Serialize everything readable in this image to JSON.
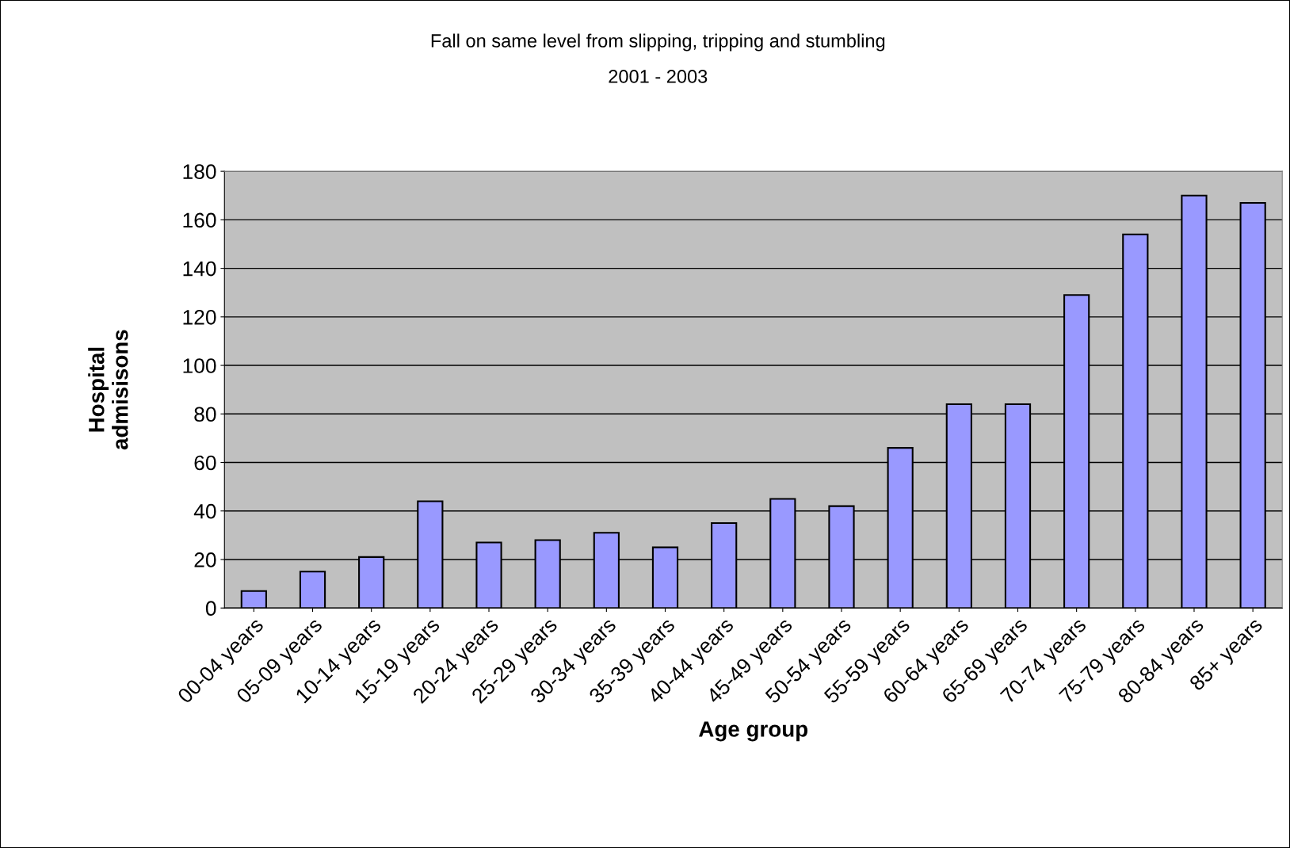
{
  "chart_data": {
    "type": "bar",
    "title": "Fall on same level from slipping, tripping and stumbling",
    "subtitle": "2001 - 2003",
    "xlabel": "Age group",
    "ylabel": "Hospital\nadmisisons",
    "categories": [
      "00-04 years",
      "05-09 years",
      "10-14 years",
      "15-19 years",
      "20-24 years",
      "25-29 years",
      "30-34 years",
      "35-39 years",
      "40-44 years",
      "45-49 years",
      "50-54 years",
      "55-59 years",
      "60-64 years",
      "65-69 years",
      "70-74 years",
      "75-79 years",
      "80-84 years",
      "85+ years"
    ],
    "values": [
      7,
      15,
      21,
      44,
      27,
      28,
      31,
      25,
      35,
      45,
      42,
      66,
      84,
      84,
      129,
      154,
      170,
      167
    ],
    "color": "#9999ff",
    "ylim": [
      0,
      180
    ],
    "yticks": [
      0,
      20,
      40,
      60,
      80,
      100,
      120,
      140,
      160,
      180
    ],
    "grid": "y",
    "legend": false
  }
}
